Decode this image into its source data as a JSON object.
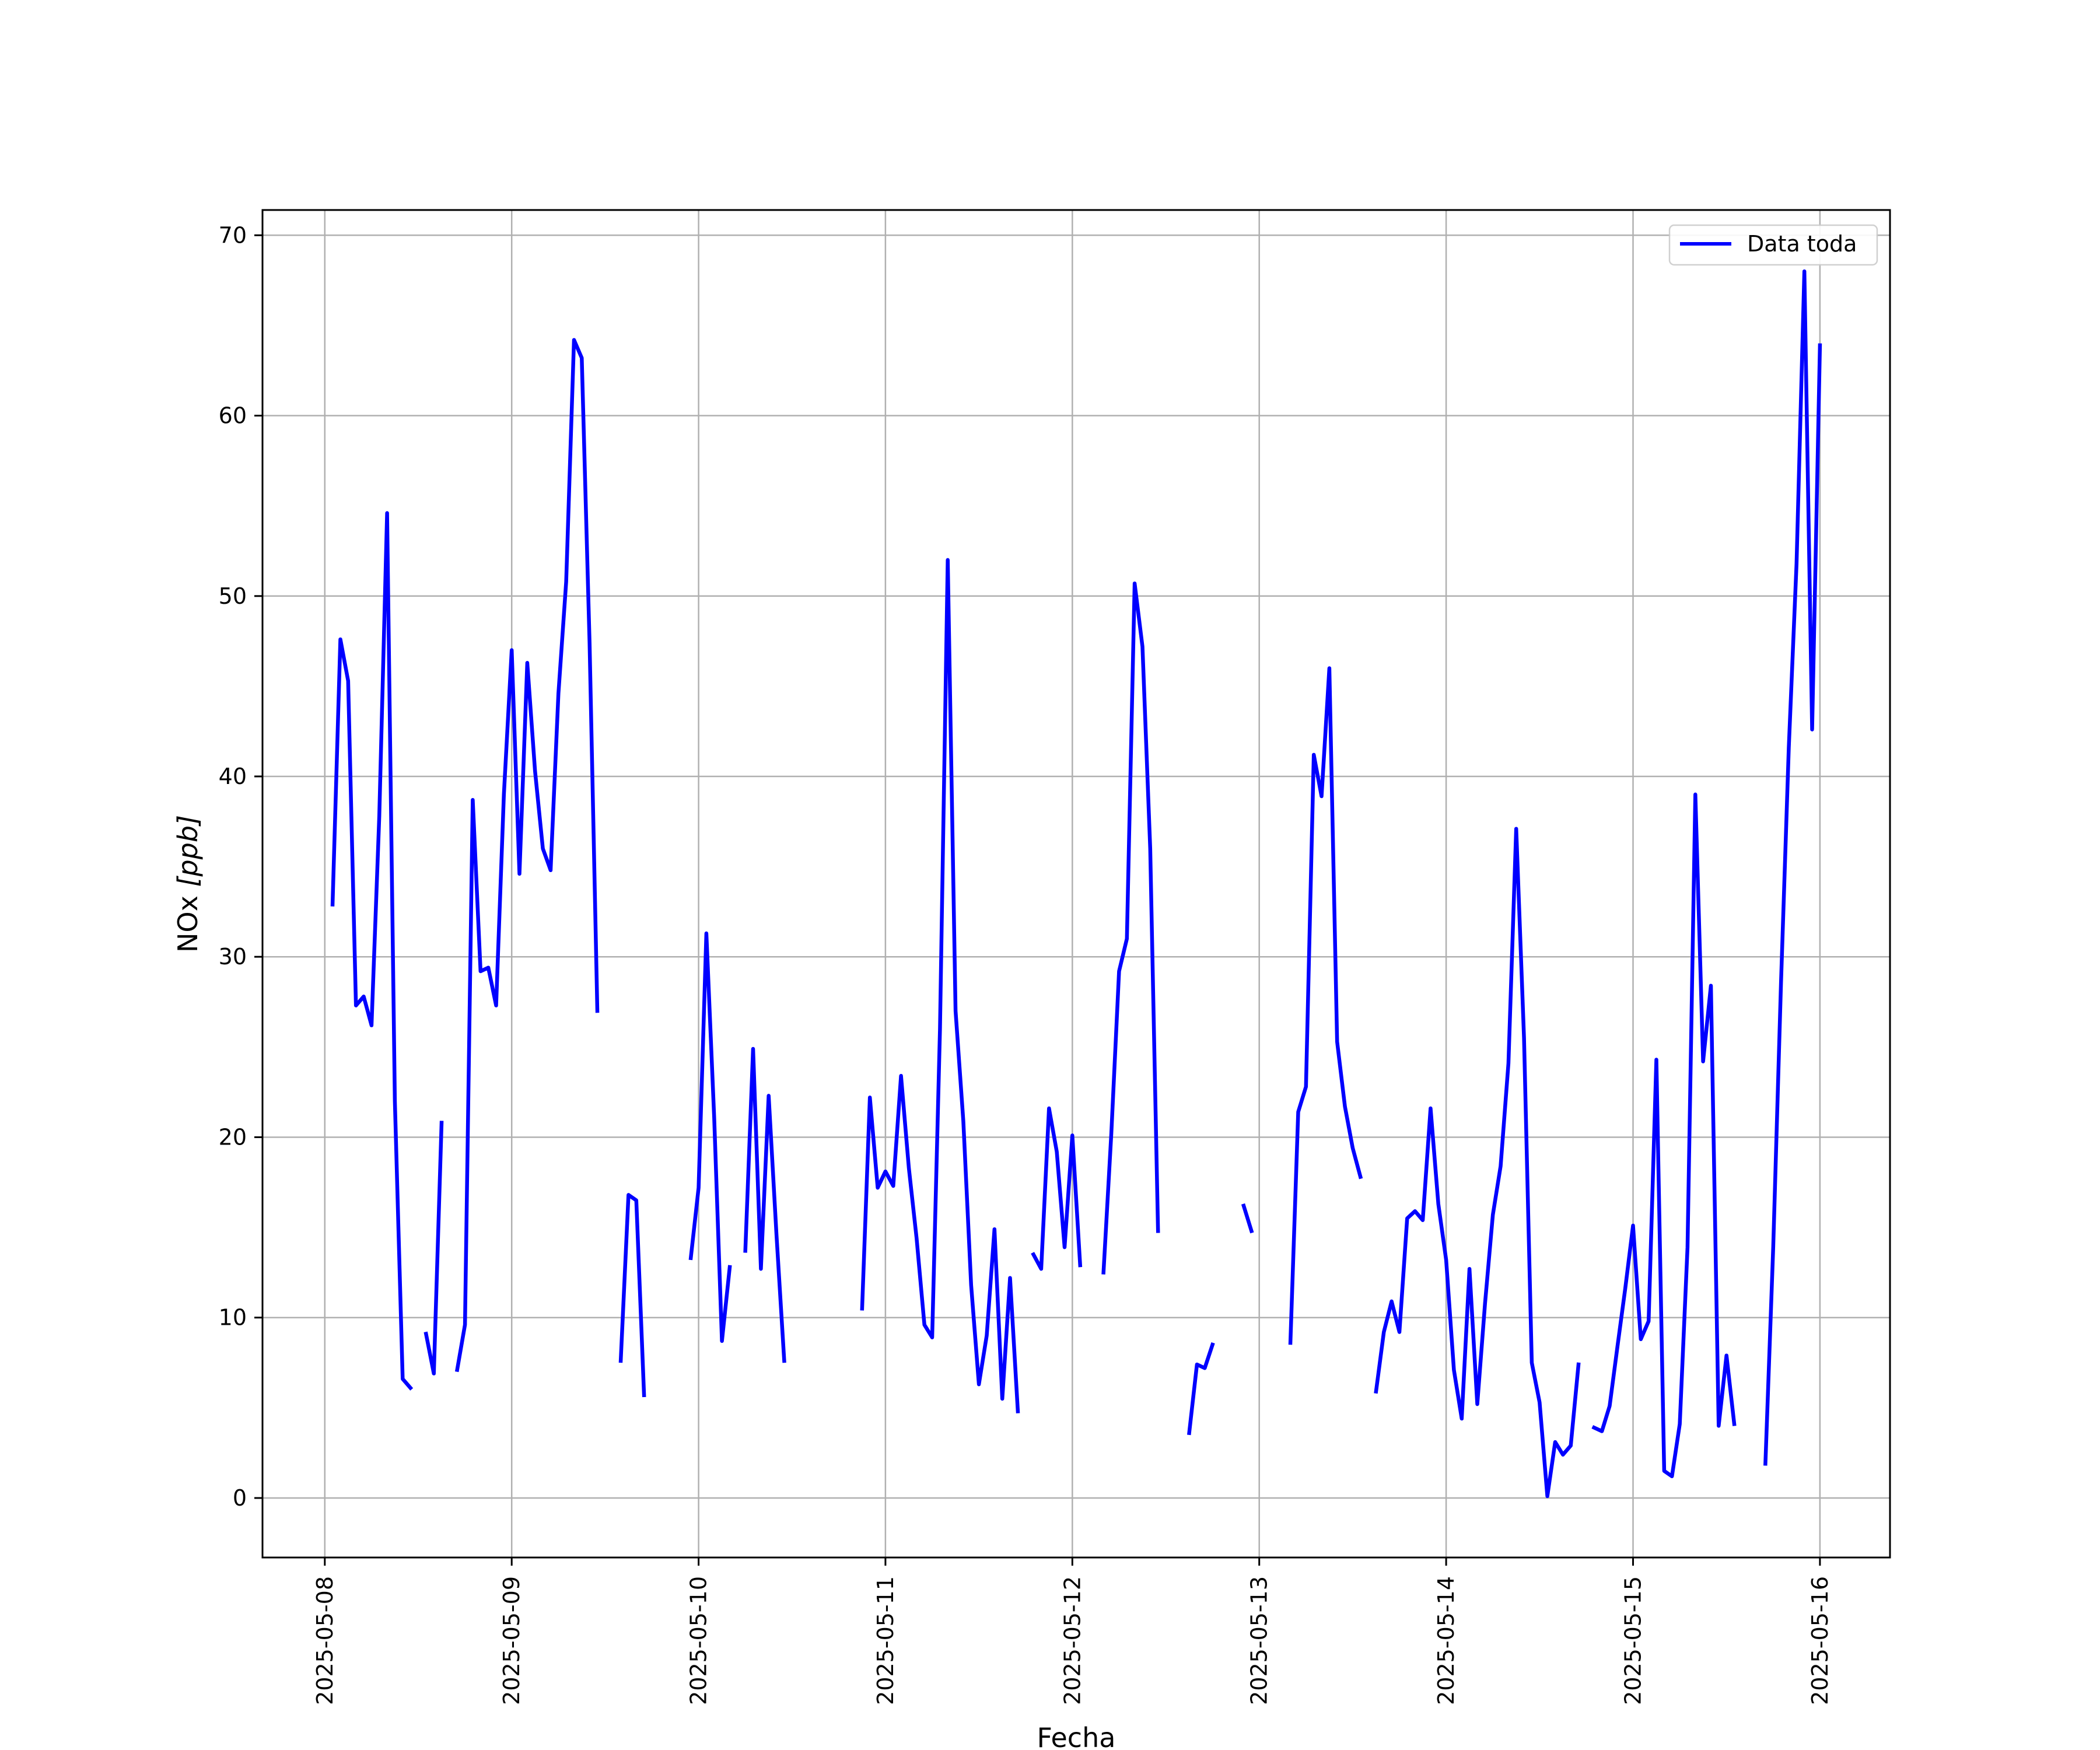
{
  "chart_data": {
    "type": "line",
    "title": "",
    "xlabel": "Fecha",
    "ylabel_main": "NOx ",
    "ylabel_unit": "[ppb]",
    "xlim": [
      "2025-05-07T16:00",
      "2025-05-16T09:00"
    ],
    "ylim": [
      -3.3,
      71.4
    ],
    "grid": true,
    "legend_position": "top-right",
    "x_ticks": [
      "2025-05-08",
      "2025-05-09",
      "2025-05-10",
      "2025-05-11",
      "2025-05-12",
      "2025-05-13",
      "2025-05-14",
      "2025-05-15",
      "2025-05-16"
    ],
    "y_ticks": [
      0,
      10,
      20,
      30,
      40,
      50,
      60,
      70
    ],
    "series": [
      {
        "name": "Data toda",
        "color": "#0000ff",
        "points": [
          [
            "2025-05-08T01:00",
            32.9
          ],
          [
            "2025-05-08T02:00",
            47.6
          ],
          [
            "2025-05-08T03:00",
            45.3
          ],
          [
            "2025-05-08T04:00",
            27.3
          ],
          [
            "2025-05-08T05:00",
            27.8
          ],
          [
            "2025-05-08T06:00",
            26.2
          ],
          [
            "2025-05-08T07:00",
            37.8
          ],
          [
            "2025-05-08T08:00",
            54.6
          ],
          [
            "2025-05-08T09:00",
            22.0
          ],
          [
            "2025-05-08T10:00",
            6.6
          ],
          [
            "2025-05-08T11:00",
            6.1
          ],
          [
            "2025-05-08T12:00",
            null
          ],
          [
            "2025-05-08T13:00",
            9.1
          ],
          [
            "2025-05-08T14:00",
            6.9
          ],
          [
            "2025-05-08T15:00",
            20.8
          ],
          [
            "2025-05-08T16:00",
            null
          ],
          [
            "2025-05-08T17:00",
            7.1
          ],
          [
            "2025-05-08T18:00",
            9.6
          ],
          [
            "2025-05-08T19:00",
            38.7
          ],
          [
            "2025-05-08T20:00",
            29.2
          ],
          [
            "2025-05-08T21:00",
            29.4
          ],
          [
            "2025-05-08T22:00",
            27.3
          ],
          [
            "2025-05-08T23:00",
            39.0
          ],
          [
            "2025-05-09T00:00",
            47.0
          ],
          [
            "2025-05-09T01:00",
            34.6
          ],
          [
            "2025-05-09T02:00",
            46.3
          ],
          [
            "2025-05-09T03:00",
            40.3
          ],
          [
            "2025-05-09T04:00",
            36.0
          ],
          [
            "2025-05-09T05:00",
            34.8
          ],
          [
            "2025-05-09T06:00",
            44.6
          ],
          [
            "2025-05-09T07:00",
            50.8
          ],
          [
            "2025-05-09T08:00",
            64.2
          ],
          [
            "2025-05-09T09:00",
            63.2
          ],
          [
            "2025-05-09T10:00",
            47.4
          ],
          [
            "2025-05-09T11:00",
            27.0
          ],
          [
            "2025-05-09T12:00",
            null
          ],
          [
            "2025-05-09T14:00",
            7.6
          ],
          [
            "2025-05-09T15:00",
            16.8
          ],
          [
            "2025-05-09T16:00",
            16.5
          ],
          [
            "2025-05-09T17:00",
            5.7
          ],
          [
            "2025-05-09T18:00",
            null
          ],
          [
            "2025-05-09T23:00",
            13.3
          ],
          [
            "2025-05-10T00:00",
            17.2
          ],
          [
            "2025-05-10T01:00",
            31.3
          ],
          [
            "2025-05-10T02:00",
            21.1
          ],
          [
            "2025-05-10T03:00",
            8.7
          ],
          [
            "2025-05-10T04:00",
            12.8
          ],
          [
            "2025-05-10T05:00",
            null
          ],
          [
            "2025-05-10T06:00",
            13.7
          ],
          [
            "2025-05-10T07:00",
            24.9
          ],
          [
            "2025-05-10T08:00",
            12.7
          ],
          [
            "2025-05-10T09:00",
            22.3
          ],
          [
            "2025-05-10T10:00",
            14.6
          ],
          [
            "2025-05-10T11:00",
            7.6
          ],
          [
            "2025-05-10T12:00",
            null
          ],
          [
            "2025-05-10T21:00",
            10.5
          ],
          [
            "2025-05-10T22:00",
            22.2
          ],
          [
            "2025-05-10T23:00",
            17.2
          ],
          [
            "2025-05-11T00:00",
            18.1
          ],
          [
            "2025-05-11T01:00",
            17.3
          ],
          [
            "2025-05-11T02:00",
            23.4
          ],
          [
            "2025-05-11T03:00",
            18.3
          ],
          [
            "2025-05-11T04:00",
            14.4
          ],
          [
            "2025-05-11T05:00",
            9.6
          ],
          [
            "2025-05-11T06:00",
            8.9
          ],
          [
            "2025-05-11T07:00",
            26.0
          ],
          [
            "2025-05-11T08:00",
            52.0
          ],
          [
            "2025-05-11T09:00",
            27.0
          ],
          [
            "2025-05-11T10:00",
            20.9
          ],
          [
            "2025-05-11T11:00",
            11.8
          ],
          [
            "2025-05-11T12:00",
            6.3
          ],
          [
            "2025-05-11T13:00",
            9.0
          ],
          [
            "2025-05-11T14:00",
            14.9
          ],
          [
            "2025-05-11T15:00",
            5.5
          ],
          [
            "2025-05-11T16:00",
            12.2
          ],
          [
            "2025-05-11T17:00",
            4.8
          ],
          [
            "2025-05-11T18:00",
            null
          ],
          [
            "2025-05-11T19:00",
            13.5
          ],
          [
            "2025-05-11T20:00",
            12.7
          ],
          [
            "2025-05-11T21:00",
            21.6
          ],
          [
            "2025-05-11T22:00",
            19.2
          ],
          [
            "2025-05-11T23:00",
            13.9
          ],
          [
            "2025-05-12T00:00",
            20.1
          ],
          [
            "2025-05-12T01:00",
            12.9
          ],
          [
            "2025-05-12T02:00",
            null
          ],
          [
            "2025-05-12T04:00",
            12.5
          ],
          [
            "2025-05-12T05:00",
            20.2
          ],
          [
            "2025-05-12T06:00",
            29.2
          ],
          [
            "2025-05-12T07:00",
            31.0
          ],
          [
            "2025-05-12T08:00",
            50.7
          ],
          [
            "2025-05-12T09:00",
            47.2
          ],
          [
            "2025-05-12T10:00",
            36.0
          ],
          [
            "2025-05-12T11:00",
            14.8
          ],
          [
            "2025-05-12T12:00",
            null
          ],
          [
            "2025-05-12T15:00",
            3.6
          ],
          [
            "2025-05-12T16:00",
            7.4
          ],
          [
            "2025-05-12T17:00",
            7.2
          ],
          [
            "2025-05-12T18:00",
            8.5
          ],
          [
            "2025-05-12T19:00",
            null
          ],
          [
            "2025-05-12T22:00",
            16.2
          ],
          [
            "2025-05-12T23:00",
            14.8
          ],
          [
            "2025-05-13T00:00",
            null
          ],
          [
            "2025-05-13T04:00",
            8.6
          ],
          [
            "2025-05-13T05:00",
            21.4
          ],
          [
            "2025-05-13T06:00",
            22.8
          ],
          [
            "2025-05-13T07:00",
            41.2
          ],
          [
            "2025-05-13T08:00",
            38.9
          ],
          [
            "2025-05-13T09:00",
            46.0
          ],
          [
            "2025-05-13T10:00",
            25.3
          ],
          [
            "2025-05-13T11:00",
            21.7
          ],
          [
            "2025-05-13T12:00",
            19.4
          ],
          [
            "2025-05-13T13:00",
            17.8
          ],
          [
            "2025-05-13T14:00",
            null
          ],
          [
            "2025-05-13T15:00",
            5.9
          ],
          [
            "2025-05-13T16:00",
            9.2
          ],
          [
            "2025-05-13T17:00",
            10.9
          ],
          [
            "2025-05-13T18:00",
            9.2
          ],
          [
            "2025-05-13T19:00",
            15.5
          ],
          [
            "2025-05-13T20:00",
            15.9
          ],
          [
            "2025-05-13T21:00",
            15.4
          ],
          [
            "2025-05-13T22:00",
            21.6
          ],
          [
            "2025-05-13T23:00",
            16.3
          ],
          [
            "2025-05-14T00:00",
            13.2
          ],
          [
            "2025-05-14T01:00",
            7.1
          ],
          [
            "2025-05-14T02:00",
            4.4
          ],
          [
            "2025-05-14T03:00",
            12.7
          ],
          [
            "2025-05-14T04:00",
            5.2
          ],
          [
            "2025-05-14T05:00",
            10.8
          ],
          [
            "2025-05-14T06:00",
            15.7
          ],
          [
            "2025-05-14T07:00",
            18.4
          ],
          [
            "2025-05-14T08:00",
            24.1
          ],
          [
            "2025-05-14T09:00",
            37.1
          ],
          [
            "2025-05-14T10:00",
            25.5
          ],
          [
            "2025-05-14T11:00",
            7.5
          ],
          [
            "2025-05-14T12:00",
            5.3
          ],
          [
            "2025-05-14T13:00",
            0.1
          ],
          [
            "2025-05-14T14:00",
            3.1
          ],
          [
            "2025-05-14T15:00",
            2.4
          ],
          [
            "2025-05-14T16:00",
            2.9
          ],
          [
            "2025-05-14T17:00",
            7.4
          ],
          [
            "2025-05-14T18:00",
            null
          ],
          [
            "2025-05-14T19:00",
            3.9
          ],
          [
            "2025-05-14T20:00",
            3.7
          ],
          [
            "2025-05-14T21:00",
            5.1
          ],
          [
            "2025-05-14T22:00",
            8.4
          ],
          [
            "2025-05-14T23:00",
            11.6
          ],
          [
            "2025-05-15T00:00",
            15.1
          ],
          [
            "2025-05-15T01:00",
            8.8
          ],
          [
            "2025-05-15T02:00",
            9.8
          ],
          [
            "2025-05-15T03:00",
            24.3
          ],
          [
            "2025-05-15T04:00",
            1.5
          ],
          [
            "2025-05-15T05:00",
            1.2
          ],
          [
            "2025-05-15T06:00",
            4.1
          ],
          [
            "2025-05-15T07:00",
            13.9
          ],
          [
            "2025-05-15T08:00",
            39.0
          ],
          [
            "2025-05-15T09:00",
            24.2
          ],
          [
            "2025-05-15T10:00",
            28.4
          ],
          [
            "2025-05-15T11:00",
            4.0
          ],
          [
            "2025-05-15T12:00",
            7.9
          ],
          [
            "2025-05-15T13:00",
            4.1
          ],
          [
            "2025-05-15T14:00",
            null
          ],
          [
            "2025-05-15T17:00",
            1.9
          ],
          [
            "2025-05-15T18:00",
            13.9
          ],
          [
            "2025-05-15T19:00",
            28.5
          ],
          [
            "2025-05-15T20:00",
            41.6
          ],
          [
            "2025-05-15T21:00",
            51.8
          ],
          [
            "2025-05-15T22:00",
            68.0
          ],
          [
            "2025-05-15T23:00",
            42.6
          ],
          [
            "2025-05-16T00:00",
            63.9
          ]
        ]
      }
    ]
  }
}
